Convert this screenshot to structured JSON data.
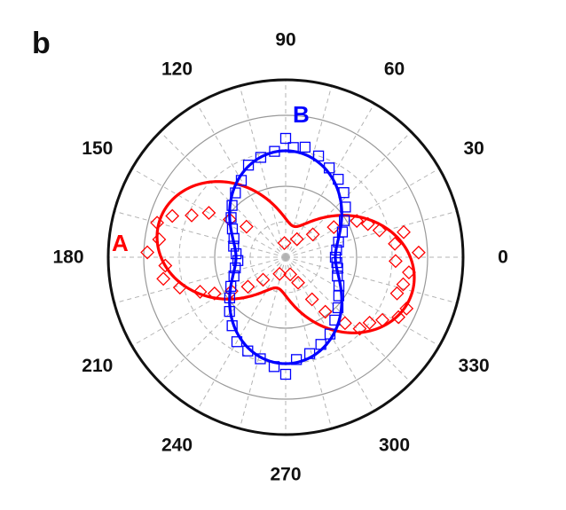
{
  "panel_label": "b",
  "chart_data": {
    "type": "polar",
    "angle_unit": "degrees",
    "angle_ticks": [
      0,
      30,
      60,
      90,
      120,
      150,
      180,
      210,
      240,
      270,
      300,
      330
    ],
    "radial_range": [
      0,
      1
    ],
    "radial_gridlines": [
      0.2,
      0.4,
      0.6,
      0.8
    ],
    "radial_gridline_style": {
      "0.2": "dashed",
      "0.4": "solid",
      "0.6": "dashed",
      "0.8": "solid"
    },
    "angular_grid": "dashed every 15 degrees",
    "series": [
      {
        "name": "A",
        "color": "#ff0000",
        "marker": "diamond",
        "fit_model": "r = 0.18 + 0.56 * cos^2(theta - 165deg)",
        "fit": {
          "offset": 0.18,
          "amplitude": 0.56,
          "phase_deg": 165
        },
        "points": [
          {
            "theta": 2,
            "r": 0.75
          },
          {
            "theta": 7,
            "r": 0.62
          },
          {
            "theta": 12,
            "r": 0.68
          },
          {
            "theta": 16,
            "r": 0.55
          },
          {
            "theta": 22,
            "r": 0.5
          },
          {
            "theta": 27,
            "r": 0.45
          },
          {
            "theta": 32,
            "r": 0.32
          },
          {
            "theta": 40,
            "r": 0.2
          },
          {
            "theta": 58,
            "r": 0.12
          },
          {
            "theta": 95,
            "r": 0.08
          },
          {
            "theta": 142,
            "r": 0.28
          },
          {
            "theta": 146,
            "r": 0.38
          },
          {
            "theta": 150,
            "r": 0.5
          },
          {
            "theta": 156,
            "r": 0.58
          },
          {
            "theta": 160,
            "r": 0.68
          },
          {
            "theta": 165,
            "r": 0.75
          },
          {
            "theta": 172,
            "r": 0.72
          },
          {
            "theta": 178,
            "r": 0.78
          },
          {
            "theta": 184,
            "r": 0.68
          },
          {
            "theta": 190,
            "r": 0.7
          },
          {
            "theta": 196,
            "r": 0.62
          },
          {
            "theta": 202,
            "r": 0.52
          },
          {
            "theta": 207,
            "r": 0.45
          },
          {
            "theta": 212,
            "r": 0.36
          },
          {
            "theta": 218,
            "r": 0.27
          },
          {
            "theta": 225,
            "r": 0.18
          },
          {
            "theta": 250,
            "r": 0.1
          },
          {
            "theta": 285,
            "r": 0.1
          },
          {
            "theta": 296,
            "r": 0.16
          },
          {
            "theta": 302,
            "r": 0.28
          },
          {
            "theta": 306,
            "r": 0.38
          },
          {
            "theta": 312,
            "r": 0.5
          },
          {
            "theta": 316,
            "r": 0.58
          },
          {
            "theta": 322,
            "r": 0.6
          },
          {
            "theta": 327,
            "r": 0.65
          },
          {
            "theta": 332,
            "r": 0.72
          },
          {
            "theta": 337,
            "r": 0.74
          },
          {
            "theta": 342,
            "r": 0.66
          },
          {
            "theta": 347,
            "r": 0.68
          },
          {
            "theta": 353,
            "r": 0.7
          },
          {
            "theta": 358,
            "r": 0.62
          }
        ]
      },
      {
        "name": "B",
        "color": "#0000ff",
        "marker": "square",
        "fit_model": "r = 0.28 + 0.32 * cos^2(theta - 90deg)",
        "fit": {
          "offset": 0.28,
          "amplitude": 0.32,
          "phase_deg": 90
        },
        "points": [
          {
            "theta": 0,
            "r": 0.28
          },
          {
            "theta": 8,
            "r": 0.29
          },
          {
            "theta": 16,
            "r": 0.31
          },
          {
            "theta": 24,
            "r": 0.35
          },
          {
            "theta": 32,
            "r": 0.39
          },
          {
            "theta": 40,
            "r": 0.44
          },
          {
            "theta": 48,
            "r": 0.49
          },
          {
            "theta": 56,
            "r": 0.53
          },
          {
            "theta": 64,
            "r": 0.56
          },
          {
            "theta": 72,
            "r": 0.6
          },
          {
            "theta": 80,
            "r": 0.63
          },
          {
            "theta": 86,
            "r": 0.62
          },
          {
            "theta": 90,
            "r": 0.67
          },
          {
            "theta": 96,
            "r": 0.6
          },
          {
            "theta": 104,
            "r": 0.58
          },
          {
            "theta": 112,
            "r": 0.56
          },
          {
            "theta": 120,
            "r": 0.5
          },
          {
            "theta": 128,
            "r": 0.46
          },
          {
            "theta": 136,
            "r": 0.42
          },
          {
            "theta": 144,
            "r": 0.38
          },
          {
            "theta": 152,
            "r": 0.34
          },
          {
            "theta": 160,
            "r": 0.31
          },
          {
            "theta": 168,
            "r": 0.3
          },
          {
            "theta": 176,
            "r": 0.28
          },
          {
            "theta": 184,
            "r": 0.27
          },
          {
            "theta": 192,
            "r": 0.29
          },
          {
            "theta": 200,
            "r": 0.31
          },
          {
            "theta": 208,
            "r": 0.35
          },
          {
            "theta": 216,
            "r": 0.39
          },
          {
            "theta": 224,
            "r": 0.44
          },
          {
            "theta": 232,
            "r": 0.49
          },
          {
            "theta": 240,
            "r": 0.55
          },
          {
            "theta": 248,
            "r": 0.57
          },
          {
            "theta": 256,
            "r": 0.59
          },
          {
            "theta": 264,
            "r": 0.62
          },
          {
            "theta": 270,
            "r": 0.66
          },
          {
            "theta": 276,
            "r": 0.58
          },
          {
            "theta": 284,
            "r": 0.56
          },
          {
            "theta": 292,
            "r": 0.53
          },
          {
            "theta": 300,
            "r": 0.5
          },
          {
            "theta": 308,
            "r": 0.45
          },
          {
            "theta": 316,
            "r": 0.41
          },
          {
            "theta": 324,
            "r": 0.37
          },
          {
            "theta": 332,
            "r": 0.34
          },
          {
            "theta": 340,
            "r": 0.31
          },
          {
            "theta": 348,
            "r": 0.3
          },
          {
            "theta": 354,
            "r": 0.29
          }
        ]
      }
    ]
  }
}
